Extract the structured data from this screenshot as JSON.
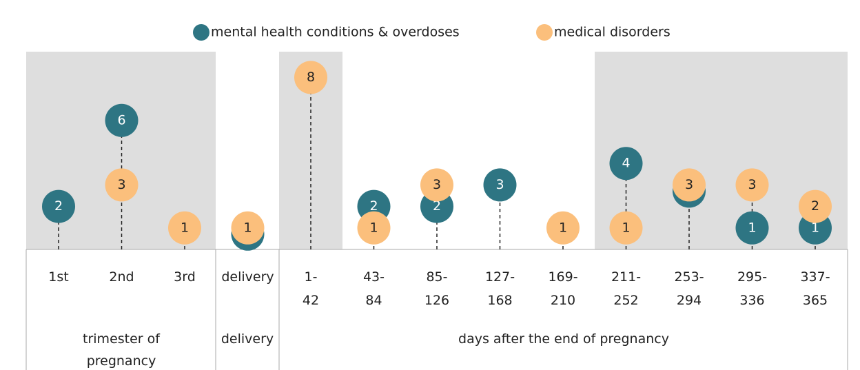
{
  "chart_data": {
    "type": "dot",
    "categories": [
      "1st",
      "2nd",
      "3rd",
      "delivery",
      "1-42",
      "43-84",
      "85-126",
      "127-168",
      "169-210",
      "211-252",
      "253-294",
      "295-336",
      "337-365"
    ],
    "group_labels": [
      "trimester of pregnancy",
      "delivery",
      "days after the end of pregnancy"
    ],
    "series": [
      {
        "name": "mental health conditions & overdoses",
        "color": "#2e7583",
        "values": [
          2,
          6,
          null,
          1,
          null,
          2,
          2,
          3,
          null,
          4,
          3,
          1,
          1
        ]
      },
      {
        "name": "medical disorders",
        "color": "#fbbf7c",
        "values": [
          null,
          3,
          1,
          1,
          8,
          1,
          3,
          null,
          1,
          1,
          3,
          3,
          2
        ]
      }
    ]
  }
}
